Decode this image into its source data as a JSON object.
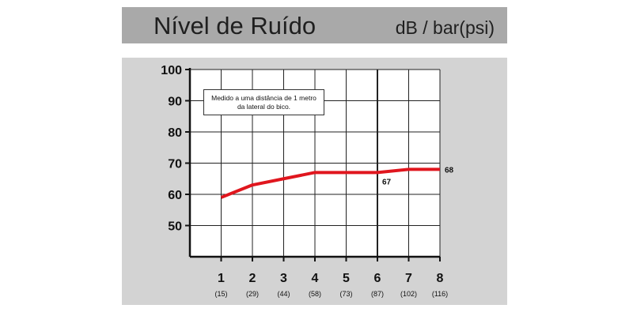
{
  "header": {
    "title": "Nível de Ruído",
    "unit": "dB / bar(psi)"
  },
  "chart_data": {
    "type": "line",
    "title": "Nível de Ruído",
    "subtitle": "dB / bar(psi)",
    "annotation": "Medido a uma distância de 1 metro da lateral do bico.",
    "annotation_lines": [
      "Medido a uma distância de 1 metro",
      "da lateral do bico."
    ],
    "x": [
      1,
      2,
      3,
      4,
      5,
      6,
      7,
      8
    ],
    "x_secondary": [
      "(15)",
      "(29)",
      "(44)",
      "(58)",
      "(73)",
      "(87)",
      "(102)",
      "(116)"
    ],
    "yticks": [
      100,
      90,
      80,
      70,
      60,
      50
    ],
    "ylim": [
      40,
      100
    ],
    "xlim": [
      0,
      8
    ],
    "series": [
      {
        "x": [
          1,
          2,
          3,
          4,
          5,
          6,
          7,
          8
        ],
        "values": [
          59,
          63,
          65,
          67,
          67,
          67,
          68,
          68
        ]
      }
    ],
    "data_labels": [
      {
        "x": 6,
        "y": 67,
        "text": "67"
      },
      {
        "x": 8,
        "y": 68,
        "text": "68"
      }
    ],
    "grid": true,
    "line_color": "#e0161e"
  }
}
